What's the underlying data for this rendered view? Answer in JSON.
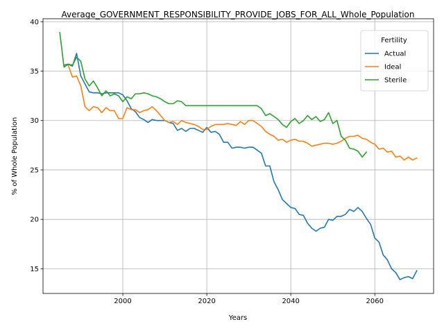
{
  "chart_data": {
    "type": "line",
    "title": "Average_GOVERNMENT_RESPONSIBILITY_PROVIDE_JOBS_FOR_ALL_Whole_Population",
    "xlabel": "Years",
    "ylabel": "% of Whole Population",
    "xlim": [
      1981,
      2074
    ],
    "ylim": [
      12.5,
      40.3
    ],
    "xticks": [
      2000,
      2020,
      2040,
      2060
    ],
    "yticks": [
      15,
      20,
      25,
      30,
      35,
      40
    ],
    "grid": true,
    "legend": {
      "title": "Fertility",
      "placement": "top-right"
    },
    "series": [
      {
        "name": "Actual",
        "color": "#1f77b4",
        "x": [
          1986,
          1987,
          1988,
          1989,
          1990,
          1991,
          1992,
          1993,
          1994,
          1995,
          1996,
          1997,
          1998,
          1999,
          2000,
          2001,
          2002,
          2003,
          2004,
          2005,
          2006,
          2007,
          2008,
          2009,
          2010,
          2011,
          2012,
          2013,
          2014,
          2015,
          2016,
          2017,
          2018,
          2019,
          2020,
          2021,
          2022,
          2023,
          2024,
          2025,
          2026,
          2027,
          2028,
          2029,
          2030,
          2031,
          2032,
          2033,
          2034,
          2035,
          2036,
          2037,
          2038,
          2039,
          2040,
          2041,
          2042,
          2043,
          2044,
          2045,
          2046,
          2047,
          2048,
          2049,
          2050,
          2051,
          2052,
          2053,
          2054,
          2055,
          2056,
          2057,
          2058,
          2059,
          2060,
          2061,
          2062,
          2063,
          2064,
          2065,
          2066,
          2067,
          2068,
          2069,
          2070
        ],
        "y": [
          35.6,
          35.7,
          35.5,
          36.8,
          34.5,
          33.7,
          32.9,
          32.8,
          32.8,
          32.7,
          32.8,
          32.8,
          32.8,
          32.8,
          32.6,
          32.0,
          31.2,
          30.9,
          30.3,
          30.1,
          29.8,
          30.1,
          30.0,
          30.0,
          30.0,
          29.8,
          29.7,
          29.0,
          29.2,
          28.9,
          29.2,
          29.2,
          29.0,
          28.8,
          29.3,
          28.8,
          28.9,
          28.6,
          27.8,
          27.8,
          27.2,
          27.3,
          27.3,
          27.2,
          27.3,
          27.3,
          27.0,
          26.7,
          25.4,
          25.4,
          23.8,
          23.0,
          22.0,
          21.6,
          21.2,
          21.1,
          20.5,
          20.4,
          19.6,
          19.1,
          18.8,
          19.1,
          19.2,
          20.0,
          19.9,
          20.3,
          20.3,
          20.5,
          21.0,
          20.8,
          21.2,
          20.8,
          20.1,
          19.5,
          18.1,
          17.7,
          16.4,
          15.9,
          15.0,
          14.6,
          13.9,
          14.1,
          14.2,
          14.0,
          14.8
        ]
      },
      {
        "name": "Ideal",
        "color": "#ff7f0e",
        "x": [
          1987,
          1988,
          1989,
          1990,
          1991,
          1992,
          1993,
          1994,
          1995,
          1996,
          1997,
          1998,
          1999,
          2000,
          2001,
          2002,
          2003,
          2004,
          2005,
          2006,
          2007,
          2008,
          2009,
          2010,
          2011,
          2012,
          2013,
          2014,
          2015,
          2016,
          2017,
          2018,
          2019,
          2020,
          2021,
          2022,
          2023,
          2024,
          2025,
          2026,
          2027,
          2028,
          2029,
          2030,
          2031,
          2032,
          2033,
          2034,
          2035,
          2036,
          2037,
          2038,
          2039,
          2040,
          2041,
          2042,
          2043,
          2044,
          2045,
          2046,
          2047,
          2048,
          2049,
          2050,
          2051,
          2052,
          2053,
          2054,
          2055,
          2056,
          2057,
          2058,
          2059,
          2060,
          2061,
          2062,
          2063,
          2064,
          2065,
          2066,
          2067,
          2068,
          2069,
          2070
        ],
        "y": [
          35.6,
          34.4,
          34.5,
          33.5,
          31.4,
          31.0,
          31.4,
          31.3,
          30.8,
          31.3,
          31.0,
          31.0,
          30.2,
          30.2,
          31.3,
          31.1,
          31.1,
          30.8,
          31.0,
          31.1,
          31.4,
          31.0,
          30.5,
          30.0,
          29.8,
          29.9,
          29.6,
          30.0,
          29.8,
          29.7,
          29.6,
          29.4,
          29.1,
          29.1,
          29.4,
          29.6,
          29.6,
          29.6,
          29.7,
          29.6,
          29.5,
          29.9,
          29.6,
          30.0,
          30.0,
          29.7,
          29.4,
          28.9,
          28.6,
          28.4,
          28.0,
          28.1,
          27.8,
          28.0,
          28.1,
          27.9,
          27.9,
          27.7,
          27.4,
          27.5,
          27.6,
          27.7,
          27.7,
          27.6,
          27.7,
          27.9,
          28.2,
          28.4,
          28.4,
          28.5,
          28.2,
          28.1,
          27.8,
          27.6,
          27.1,
          27.2,
          26.8,
          26.9,
          26.3,
          26.4,
          26.0,
          26.3,
          26.0,
          26.2
        ]
      },
      {
        "name": "Sterile",
        "color": "#2ca02c",
        "x": [
          1985,
          1986,
          1987,
          1988,
          1989,
          1990,
          1991,
          1992,
          1993,
          1994,
          1995,
          1996,
          1997,
          1998,
          1999,
          2000,
          2001,
          2002,
          2003,
          2004,
          2005,
          2006,
          2007,
          2008,
          2009,
          2010,
          2011,
          2012,
          2013,
          2014,
          2015,
          2016,
          2017,
          2018,
          2019,
          2020,
          2021,
          2022,
          2023,
          2024,
          2025,
          2026,
          2027,
          2028,
          2029,
          2030,
          2031,
          2032,
          2033,
          2034,
          2035,
          2036,
          2037,
          2038,
          2039,
          2040,
          2041,
          2042,
          2043,
          2044,
          2045,
          2046,
          2047,
          2048,
          2049,
          2050,
          2051,
          2052,
          2053,
          2054,
          2055,
          2056,
          2057,
          2058
        ],
        "y": [
          38.9,
          35.4,
          35.7,
          35.6,
          36.4,
          36.0,
          34.2,
          33.5,
          34.0,
          33.3,
          32.5,
          33.0,
          32.5,
          32.7,
          32.5,
          31.9,
          32.4,
          32.2,
          32.7,
          32.7,
          32.8,
          32.7,
          32.5,
          32.4,
          32.2,
          31.9,
          31.7,
          31.7,
          32.0,
          31.9,
          31.5,
          31.5,
          31.5,
          31.5,
          31.5,
          31.5,
          31.5,
          31.5,
          31.5,
          31.5,
          31.5,
          31.5,
          31.5,
          31.5,
          31.5,
          31.5,
          31.5,
          31.5,
          31.2,
          30.5,
          30.7,
          30.4,
          30.1,
          29.6,
          29.3,
          29.9,
          30.2,
          29.7,
          30.0,
          30.5,
          30.1,
          30.4,
          29.9,
          30.1,
          30.8,
          29.7,
          30.0,
          28.4,
          28.0,
          27.2,
          27.1,
          26.9,
          26.3,
          26.8
        ]
      }
    ]
  }
}
